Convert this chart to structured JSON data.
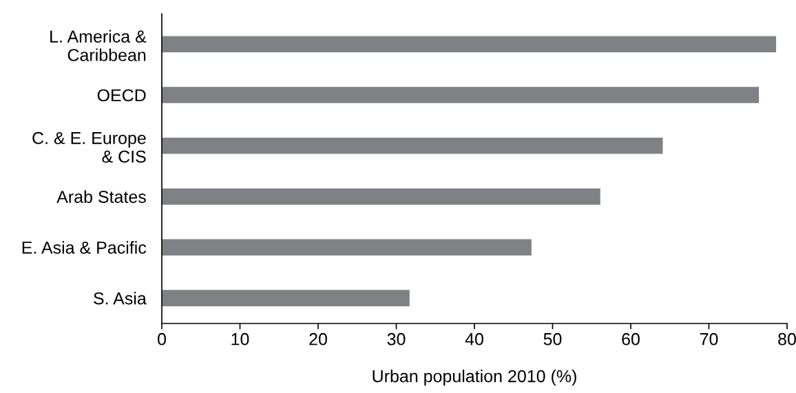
{
  "chart_data": {
    "type": "bar",
    "orientation": "horizontal",
    "xlabel": "Urban population 2010 (%)",
    "categories": [
      "L. America &\nCaribbean",
      "OECD",
      "C. & E. Europe\n& CIS",
      "Arab States",
      "E. Asia & Pacific",
      "S. Asia"
    ],
    "values": [
      78.6,
      76.4,
      64.1,
      56.1,
      47.3,
      31.7
    ],
    "color": "#808184",
    "xlim": [
      0,
      80
    ],
    "xticks": [
      0,
      10,
      20,
      30,
      40,
      50,
      60,
      70,
      80
    ],
    "grid": false
  }
}
